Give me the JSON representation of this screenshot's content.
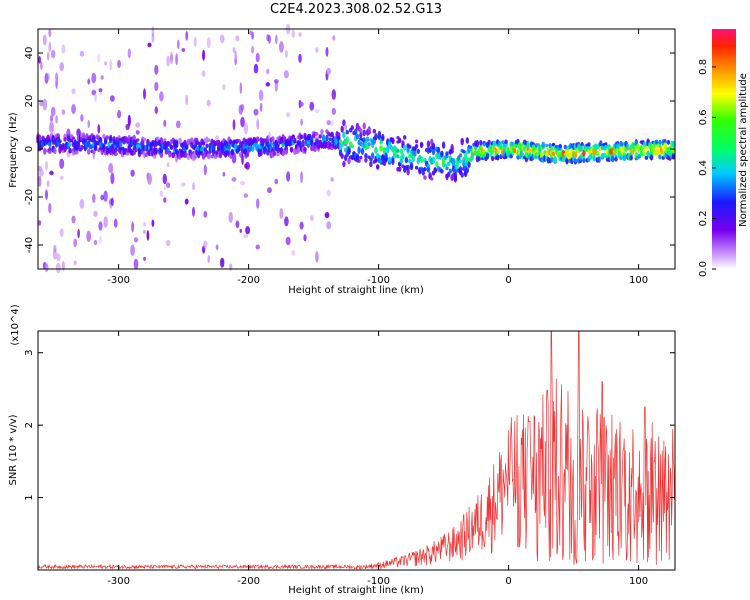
{
  "title": "C2E4.2023.308.02.52.G13",
  "chart_data": [
    {
      "type": "heatmap",
      "title": "C2E4.2023.308.02.52.G13",
      "xlabel": "Height of straight line (km)",
      "ylabel": "Frequency (Hz)",
      "xlim": [
        -362,
        128
      ],
      "ylim": [
        -50,
        50
      ],
      "x_ticks": [
        -300,
        -200,
        -100,
        0,
        100
      ],
      "y_ticks": [
        -40,
        -20,
        0,
        20,
        40
      ],
      "colorbar": {
        "label": "Normalized spectral amplitude",
        "range": [
          0,
          0.95
        ],
        "ticks": [
          "0.0",
          "0.2",
          "0.4",
          "0.6",
          "0.8"
        ],
        "tick_values": [
          0.0,
          0.2,
          0.4,
          0.6,
          0.8
        ]
      },
      "ridge_center_hz": [
        {
          "x": -315,
          "y": 2
        },
        {
          "x": -250,
          "y": 0
        },
        {
          "x": -180,
          "y": 1
        },
        {
          "x": -140,
          "y": 4
        },
        {
          "x": -100,
          "y": 0
        },
        {
          "x": -70,
          "y": -4
        },
        {
          "x": -40,
          "y": -6
        },
        {
          "x": -25,
          "y": -1
        },
        {
          "x": 0,
          "y": 0
        },
        {
          "x": 40,
          "y": -2
        },
        {
          "x": 80,
          "y": -1
        },
        {
          "x": 128,
          "y": 0
        }
      ],
      "peak_amplitude_region": {
        "x_from": -30,
        "x_to": 128,
        "amplitude": 0.9
      }
    },
    {
      "type": "line",
      "xlabel": "Height of straight line (km)",
      "ylabel": "SNR (10 * v/v)",
      "y_scale_label": "(x10^4)",
      "xlim": [
        -362,
        128
      ],
      "ylim": [
        0,
        3.3
      ],
      "x_ticks": [
        -300,
        -200,
        -100,
        0,
        100
      ],
      "y_ticks": [
        1,
        2,
        3
      ],
      "color": "#ee3333",
      "envelope": [
        {
          "x": -362,
          "y": 0.03
        },
        {
          "x": -120,
          "y": 0.05
        },
        {
          "x": -100,
          "y": 0.1
        },
        {
          "x": -80,
          "y": 0.2
        },
        {
          "x": -60,
          "y": 0.35
        },
        {
          "x": -40,
          "y": 0.6
        },
        {
          "x": -20,
          "y": 1.1
        },
        {
          "x": -10,
          "y": 1.5
        },
        {
          "x": 0,
          "y": 2.0
        },
        {
          "x": 20,
          "y": 2.2
        },
        {
          "x": 40,
          "y": 2.6
        },
        {
          "x": 60,
          "y": 2.3
        },
        {
          "x": 90,
          "y": 2.0
        },
        {
          "x": 128,
          "y": 1.9
        }
      ],
      "peaks": [
        {
          "x": 33,
          "y": 3.3
        },
        {
          "x": 54,
          "y": 3.3
        },
        {
          "x": 16,
          "y": 2.05
        },
        {
          "x": 72,
          "y": 2.6
        },
        {
          "x": 105,
          "y": 2.25
        }
      ]
    }
  ]
}
